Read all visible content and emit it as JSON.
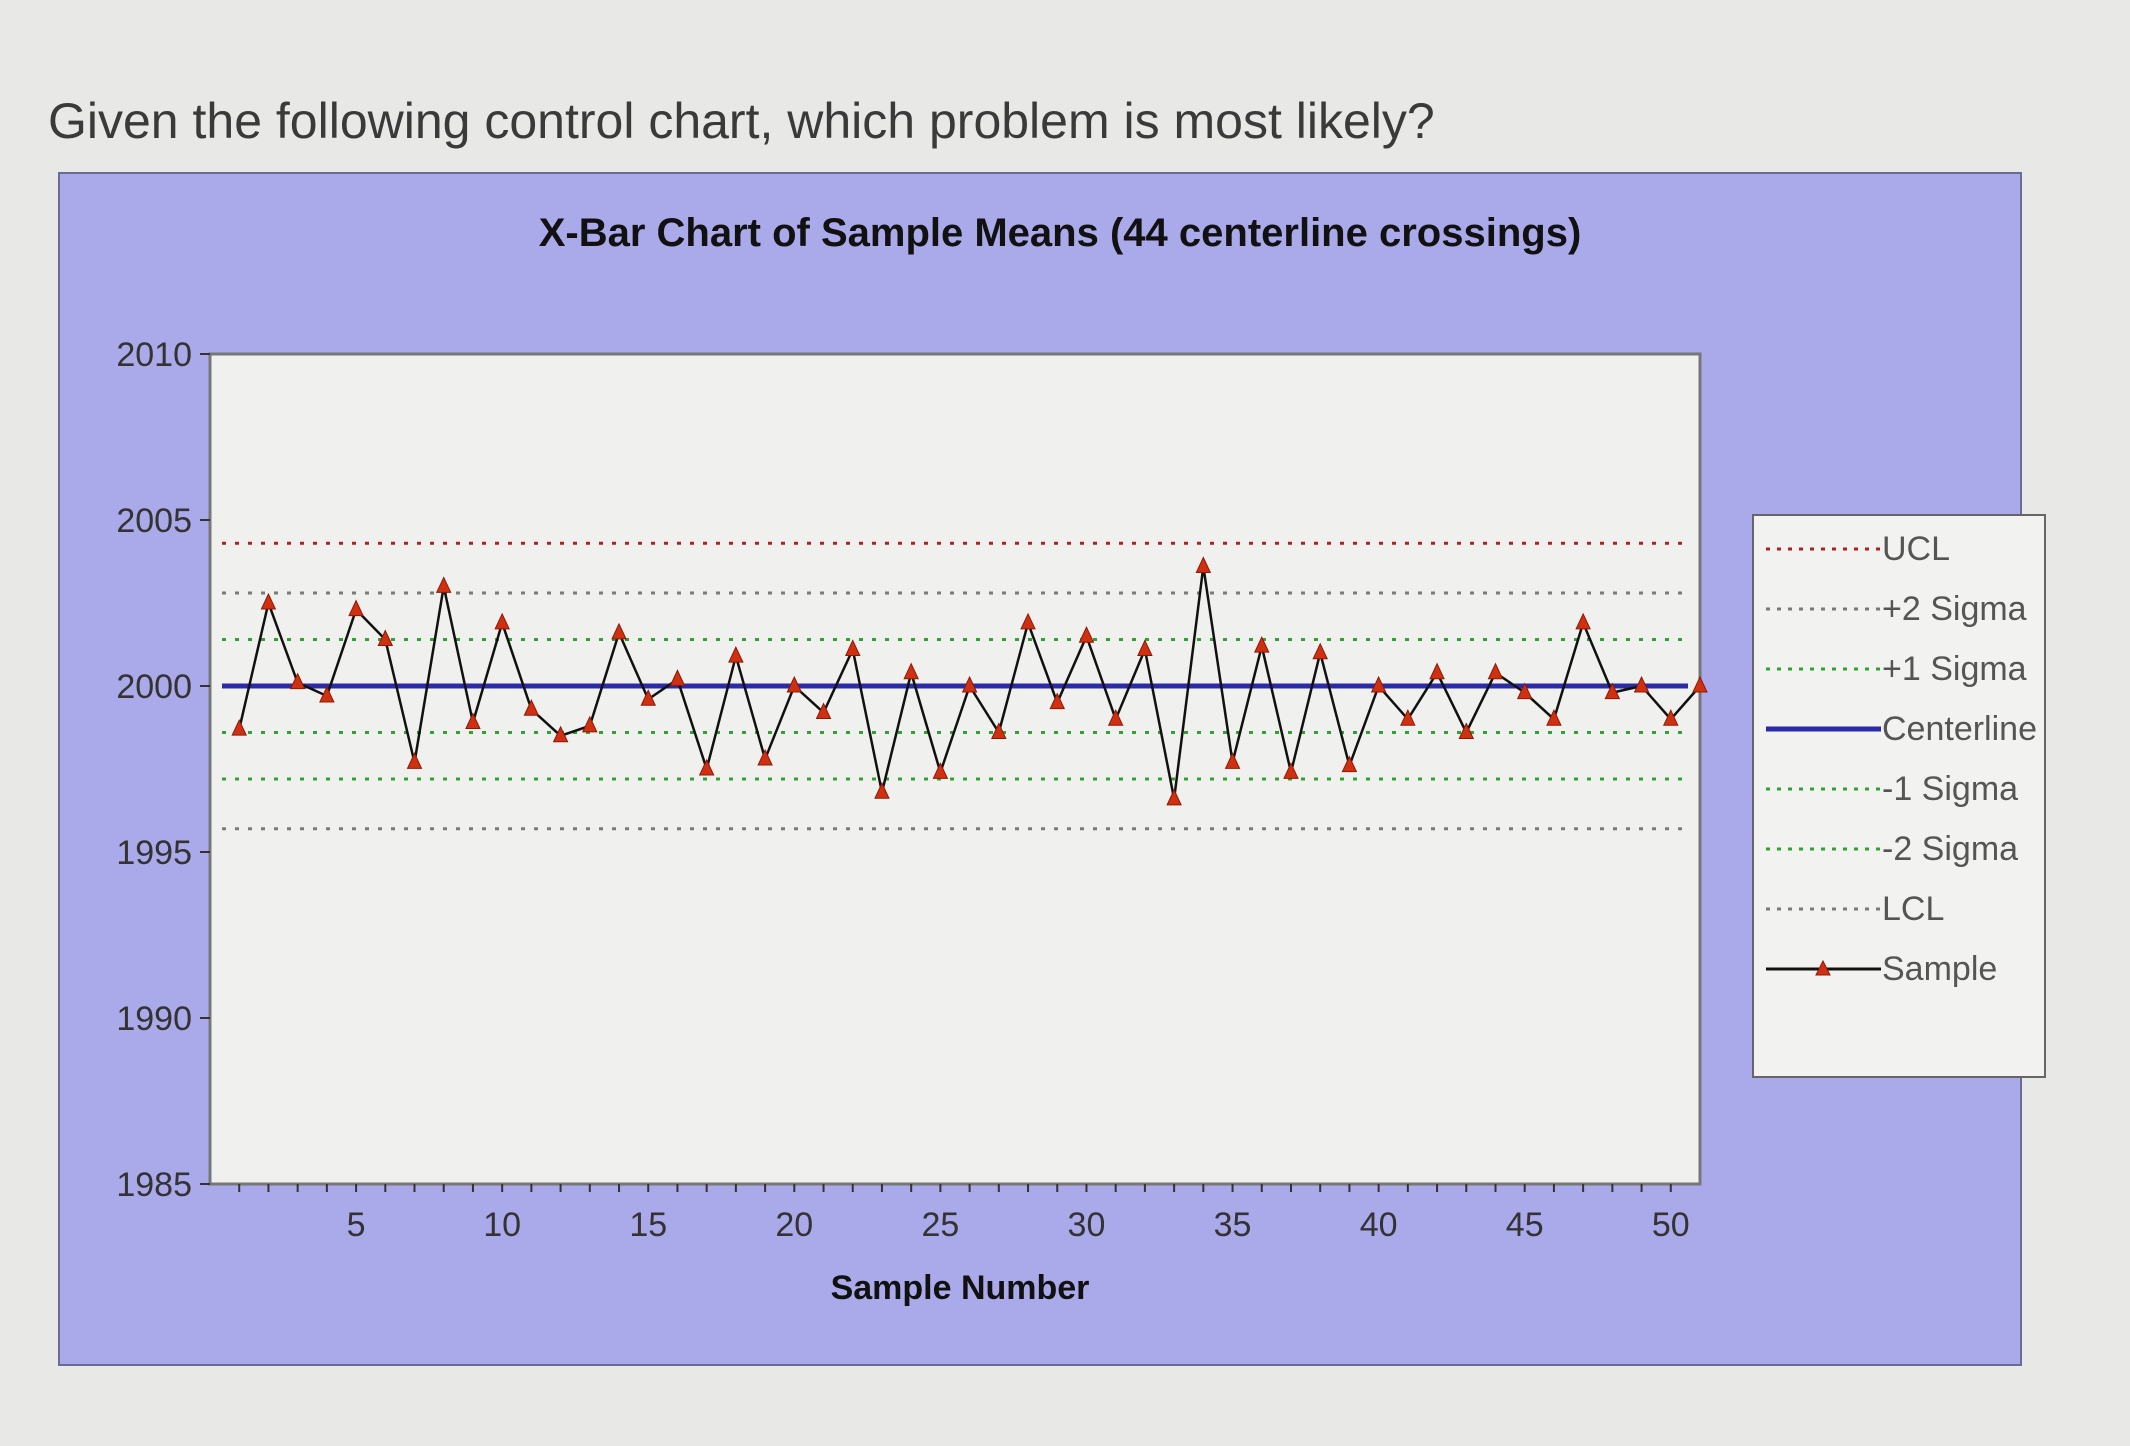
{
  "question": "Given the following control chart, which problem is most likely?",
  "colors": {
    "panel": "#aaa9ea",
    "plot": "#f0f0ee",
    "centerline": "#2b2ba8",
    "ucl_lcl": "#b02020",
    "sigma2": "#7a7a7a",
    "sigma1": "#2fa32f",
    "sample_line": "#111111",
    "sample_marker": "#d03010"
  },
  "chart_data": {
    "type": "line",
    "title": "X-Bar Chart of Sample Means (44 centerline crossings)",
    "xlabel": "Sample Number",
    "ylabel": "",
    "xlim": [
      0,
      51
    ],
    "ylim": [
      1985,
      2010
    ],
    "x_ticks": [
      5,
      10,
      15,
      20,
      25,
      30,
      35,
      40,
      45,
      50
    ],
    "y_ticks": [
      1985,
      1990,
      1995,
      2000,
      2005
    ],
    "grid": false,
    "legend_position": "right",
    "reference_lines": [
      {
        "name": "UCL",
        "value": 2004.3,
        "style": "dotted",
        "color": "#b02020"
      },
      {
        "name": "+2 Sigma",
        "value": 2002.8,
        "style": "dotted",
        "color": "#7a7a7a"
      },
      {
        "name": "+1 Sigma",
        "value": 2001.4,
        "style": "dotted",
        "color": "#2fa32f"
      },
      {
        "name": "Centerline",
        "value": 2000.0,
        "style": "solid",
        "color": "#2b2ba8"
      },
      {
        "name": "-1 Sigma",
        "value": 1998.6,
        "style": "dotted",
        "color": "#2fa32f"
      },
      {
        "name": "-2 Sigma",
        "value": 1997.2,
        "style": "dotted",
        "color": "#2fa32f"
      },
      {
        "name": "LCL",
        "value": 1995.7,
        "style": "dotted",
        "color": "#7a7a7a"
      }
    ],
    "series": [
      {
        "name": "Sample",
        "x": [
          1,
          2,
          3,
          4,
          5,
          6,
          7,
          8,
          9,
          10,
          11,
          12,
          13,
          14,
          15,
          16,
          17,
          18,
          19,
          20,
          21,
          22,
          23,
          24,
          25,
          26,
          27,
          28,
          29,
          30,
          31,
          32,
          33,
          34,
          35,
          36,
          37,
          38,
          39,
          40,
          41,
          42,
          43,
          44,
          45,
          46,
          47,
          48,
          49,
          50,
          51
        ],
        "values": [
          1998.7,
          2002.5,
          2000.1,
          1999.7,
          2002.3,
          2001.4,
          1997.7,
          2003.0,
          1998.9,
          2001.9,
          1999.3,
          1998.5,
          1998.8,
          2001.6,
          1999.6,
          2000.2,
          1997.5,
          2000.9,
          1997.8,
          2000.0,
          1999.2,
          2001.1,
          1996.8,
          2000.4,
          1997.4,
          2000.0,
          1998.6,
          2001.9,
          1999.5,
          2001.5,
          1999.0,
          2001.1,
          1996.6,
          2003.6,
          1997.7,
          2001.2,
          1997.4,
          2001.0,
          1997.6,
          2000.0,
          1999.0,
          2000.4,
          1998.6,
          2000.4,
          1999.8,
          1999.0,
          2001.9,
          1999.8,
          2000.0,
          1999.0,
          2000.0
        ]
      }
    ]
  },
  "legend": {
    "items": [
      {
        "label": "UCL"
      },
      {
        "label": "+2 Sigma"
      },
      {
        "label": "+1 Sigma"
      },
      {
        "label": "Centerline"
      },
      {
        "label": "-1 Sigma"
      },
      {
        "label": "-2 Sigma"
      },
      {
        "label": "LCL"
      },
      {
        "label": "Sample"
      }
    ]
  }
}
